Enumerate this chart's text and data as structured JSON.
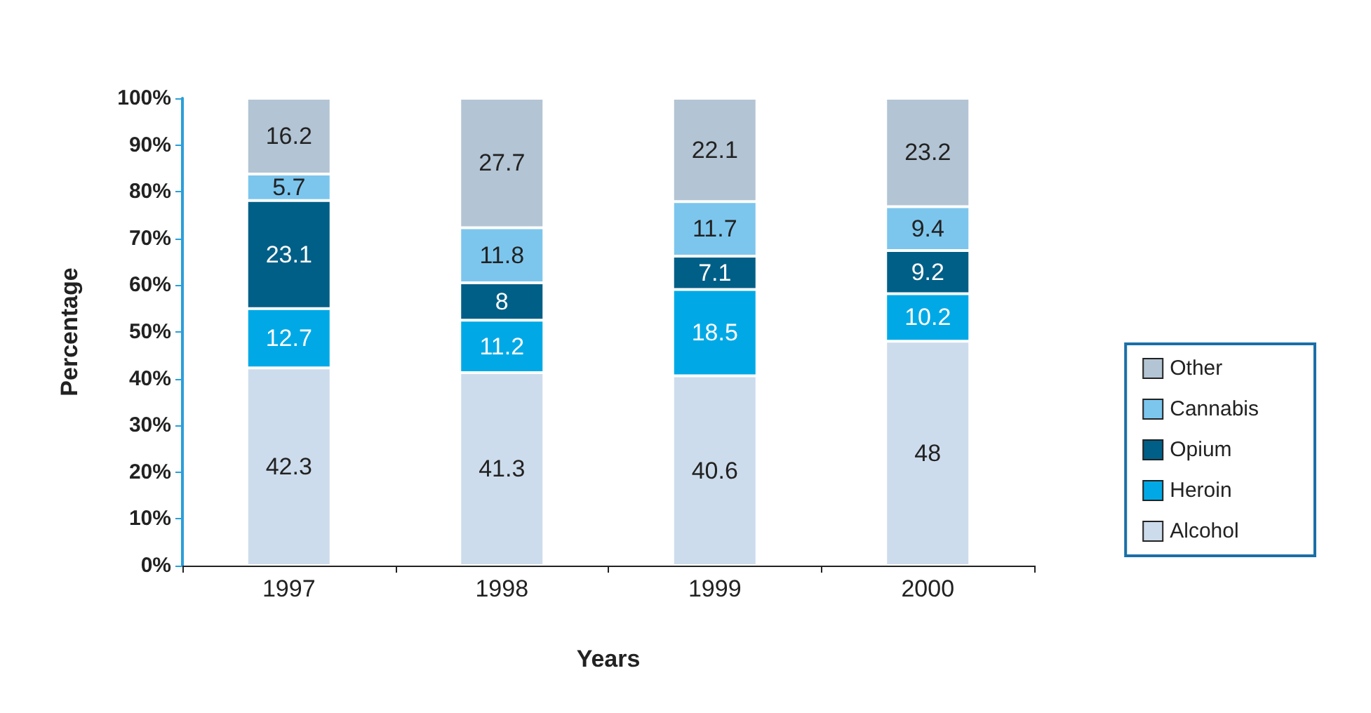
{
  "chart_data": {
    "type": "bar",
    "stacked": true,
    "xlabel": "Years",
    "ylabel": "Percentage",
    "categories": [
      "1997",
      "1998",
      "1999",
      "2000"
    ],
    "series": [
      {
        "name": "Alcohol",
        "color": "#cddcec",
        "values": [
          42.3,
          41.3,
          40.6,
          48
        ]
      },
      {
        "name": "Heroin",
        "color": "#00a9e6",
        "values": [
          12.7,
          11.2,
          18.5,
          10.2
        ]
      },
      {
        "name": "Opium",
        "color": "#005f87",
        "values": [
          23.1,
          8,
          7.1,
          9.2
        ]
      },
      {
        "name": "Cannabis",
        "color": "#7cc6ee",
        "values": [
          5.7,
          11.8,
          11.7,
          9.4
        ]
      },
      {
        "name": "Other",
        "color": "#b3c4d4",
        "values": [
          16.2,
          27.7,
          22.1,
          23.2
        ]
      }
    ],
    "ylim": [
      0,
      100
    ],
    "yticks": [
      {
        "value": 0,
        "label": "0%"
      },
      {
        "value": 10,
        "label": "10%"
      },
      {
        "value": 20,
        "label": "20%"
      },
      {
        "value": 30,
        "label": "30%"
      },
      {
        "value": 40,
        "label": "40%"
      },
      {
        "value": 50,
        "label": "50%"
      },
      {
        "value": 60,
        "label": "60%"
      },
      {
        "value": 70,
        "label": "70%"
      },
      {
        "value": 80,
        "label": "80%"
      },
      {
        "value": 90,
        "label": "90%"
      },
      {
        "value": 100,
        "label": "100%"
      }
    ],
    "data_labels": true,
    "grid": false,
    "legend": "right"
  }
}
